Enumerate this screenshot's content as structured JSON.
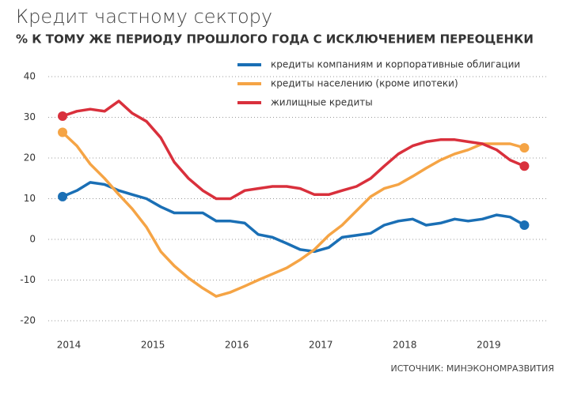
{
  "chart_data": {
    "type": "line",
    "title": "Кредит частному сектору",
    "subtitle": "% К ТОМУ ЖЕ ПЕРИОДУ ПРОШЛОГО ГОДА С ИСКЛЮЧЕНИЕМ ПЕРЕОЦЕНКИ",
    "source": "ИСТОЧНИК: МИНЭКОНОМРАЗВИТИЯ",
    "x": [
      2014,
      2014.17,
      2014.33,
      2014.5,
      2014.67,
      2014.83,
      2015,
      2015.17,
      2015.33,
      2015.5,
      2015.67,
      2015.83,
      2016,
      2016.17,
      2016.33,
      2016.5,
      2016.67,
      2016.83,
      2017,
      2017.17,
      2017.33,
      2017.5,
      2017.67,
      2017.83,
      2018,
      2018.17,
      2018.33,
      2018.5,
      2018.67,
      2018.83,
      2019,
      2019.17,
      2019.33,
      2019.5
    ],
    "series": [
      {
        "name": "кредиты компаниям и корпоративные облигации",
        "color": "#1a6fb5",
        "values": [
          10.5,
          12,
          14,
          13.5,
          12,
          11,
          10,
          8,
          6.5,
          6.5,
          6.5,
          4.5,
          4.5,
          4,
          1.2,
          0.5,
          -1,
          -2.5,
          -3,
          -2,
          0.5,
          1,
          1.5,
          3.5,
          4.5,
          5,
          3.5,
          4,
          5,
          4.5,
          5,
          6,
          5.5,
          3.5
        ]
      },
      {
        "name": "кредиты населению (кроме ипотеки)",
        "color": "#f5a445",
        "values": [
          26.3,
          23,
          18.5,
          15,
          11,
          7.5,
          3,
          -3,
          -6.5,
          -9.5,
          -12,
          -14,
          -13,
          -11.5,
          -10,
          -8.5,
          -7,
          -5,
          -2.5,
          1,
          3.5,
          7,
          10.5,
          12.5,
          13.5,
          15.5,
          17.5,
          19.5,
          21,
          22,
          23.5,
          23.5,
          23.5,
          22.5
        ]
      },
      {
        "name": "жилищные кредиты",
        "color": "#d9303c",
        "values": [
          30.3,
          31.5,
          32,
          31.5,
          34,
          31,
          29,
          25,
          19,
          15,
          12,
          10,
          10,
          12,
          12.5,
          13,
          13,
          12.5,
          11,
          11,
          12,
          13,
          15,
          18,
          21,
          23,
          24,
          24.5,
          24.5,
          24,
          23.5,
          22,
          19.5,
          18
        ]
      }
    ],
    "xlim": [
      2013.83,
      2019.76
    ],
    "xticks": [
      2014,
      2015,
      2016,
      2017,
      2018,
      2019
    ],
    "ylim": [
      -20,
      40
    ],
    "yticks": [
      -20,
      -10,
      0,
      10,
      20,
      30,
      40
    ],
    "grid": true
  }
}
